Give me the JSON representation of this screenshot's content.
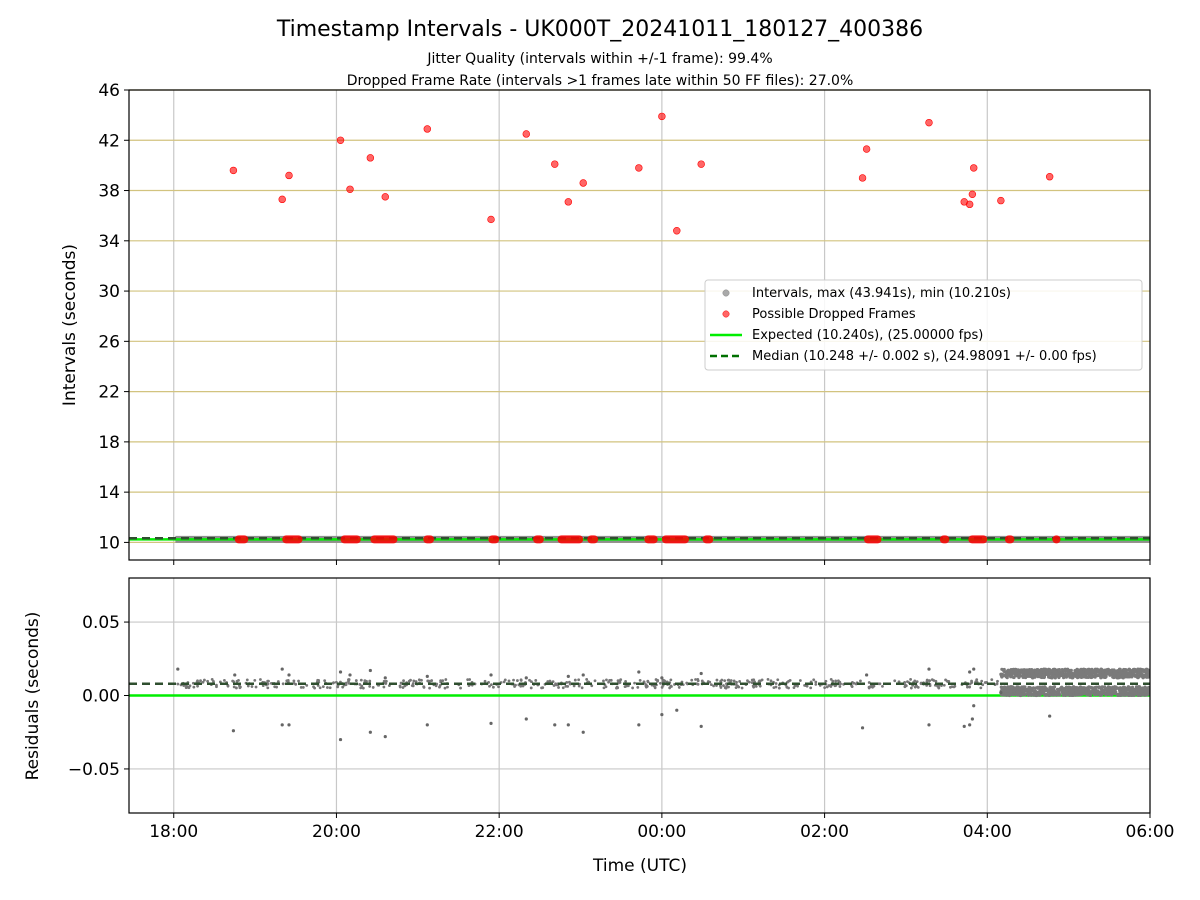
{
  "chart_data": {
    "type": "scatter",
    "title": "Timestamp Intervals - UK000T_20241011_180127_400386",
    "subtitle_lines": [
      "Jitter Quality (intervals within +/-1 frame): 99.4%",
      "Dropped Frame Rate (intervals >1 frames late within 50 FF files): 27.0%"
    ],
    "xlabel": "Time (UTC)",
    "x_ticks": [
      "18:00",
      "20:00",
      "22:00",
      "00:00",
      "02:00",
      "04:00",
      "06:00"
    ],
    "x_range_hours": [
      17.45,
      30.0
    ],
    "top": {
      "ylabel": "Intervals (seconds)",
      "ylim": [
        8.6,
        46
      ],
      "y_ticks": [
        10,
        14,
        18,
        22,
        26,
        30,
        34,
        38,
        42,
        46
      ],
      "grid": true,
      "legend_position": "center-right",
      "legend": [
        {
          "label": "Intervals, max (43.941s), min (10.210s)",
          "kind": "marker",
          "color": "#a9a9a9"
        },
        {
          "label": "Possible Dropped Frames",
          "kind": "marker",
          "color": "#ff0000"
        },
        {
          "label": "Expected (10.240s), (25.00000 fps)",
          "kind": "line",
          "color": "#00ee00",
          "dash": false
        },
        {
          "label": "Median (10.248 +/- 0.002 s), (24.98091 +/- 0.00 fps)",
          "kind": "line",
          "color": "#007000",
          "dash": true
        }
      ],
      "expected": 10.24,
      "median": 10.248,
      "dropped_frames": [
        {
          "time": "18:44",
          "interval": 39.6
        },
        {
          "time": "19:20",
          "interval": 37.3
        },
        {
          "time": "19:25",
          "interval": 39.2
        },
        {
          "time": "20:03",
          "interval": 42.0
        },
        {
          "time": "20:10",
          "interval": 38.1
        },
        {
          "time": "20:25",
          "interval": 40.6
        },
        {
          "time": "20:36",
          "interval": 37.5
        },
        {
          "time": "21:07",
          "interval": 42.9
        },
        {
          "time": "21:54",
          "interval": 35.7
        },
        {
          "time": "22:20",
          "interval": 42.5
        },
        {
          "time": "22:41",
          "interval": 40.1
        },
        {
          "time": "22:51",
          "interval": 37.1
        },
        {
          "time": "23:02",
          "interval": 38.6
        },
        {
          "time": "23:43",
          "interval": 39.8
        },
        {
          "time": "00:00",
          "interval": 43.9
        },
        {
          "time": "00:11",
          "interval": 34.8
        },
        {
          "time": "00:29",
          "interval": 40.1
        },
        {
          "time": "02:28",
          "interval": 39.0
        },
        {
          "time": "02:31",
          "interval": 41.3
        },
        {
          "time": "03:17",
          "interval": 43.4
        },
        {
          "time": "03:43",
          "interval": 37.1
        },
        {
          "time": "03:47",
          "interval": 36.9
        },
        {
          "time": "03:49",
          "interval": 37.7
        },
        {
          "time": "03:50",
          "interval": 39.8
        },
        {
          "time": "04:10",
          "interval": 37.2
        },
        {
          "time": "04:46",
          "interval": 39.1
        }
      ],
      "dropped_baseline_clusters": [
        [
          "18:45",
          "18:55"
        ],
        [
          "19:20",
          "19:35"
        ],
        [
          "20:03",
          "20:18"
        ],
        [
          "20:25",
          "20:45"
        ],
        [
          "21:04",
          "21:12"
        ],
        [
          "21:52",
          "22:00"
        ],
        [
          "22:25",
          "22:33"
        ],
        [
          "22:43",
          "23:02"
        ],
        [
          "23:05",
          "23:13"
        ],
        [
          "23:47",
          "23:57"
        ],
        [
          "00:00",
          "00:20"
        ],
        [
          "00:30",
          "00:38"
        ],
        [
          "02:29",
          "02:42"
        ],
        [
          "03:25",
          "03:32"
        ],
        [
          "03:46",
          "04:00"
        ],
        [
          "04:13",
          "04:20"
        ],
        [
          "04:48",
          "04:54"
        ]
      ]
    },
    "bottom": {
      "ylabel": "Residuals (seconds)",
      "ylim": [
        -0.08,
        0.08
      ],
      "y_ticks": [
        0.05,
        0.0,
        -0.05
      ],
      "y_tick_labels": [
        "0.05",
        "0.00",
        "−0.05"
      ],
      "grid": true,
      "expected_residual": 0.0,
      "median_residual": 0.008,
      "outlier_points": [
        {
          "time": "18:03",
          "residual": 0.018
        },
        {
          "time": "18:44",
          "residual": -0.024
        },
        {
          "time": "18:45",
          "residual": 0.014
        },
        {
          "time": "19:20",
          "residual": 0.018
        },
        {
          "time": "19:20",
          "residual": -0.02
        },
        {
          "time": "19:25",
          "residual": -0.02
        },
        {
          "time": "19:25",
          "residual": 0.014
        },
        {
          "time": "20:03",
          "residual": -0.03
        },
        {
          "time": "20:03",
          "residual": 0.016
        },
        {
          "time": "20:10",
          "residual": 0.014
        },
        {
          "time": "20:25",
          "residual": -0.025
        },
        {
          "time": "20:25",
          "residual": 0.017
        },
        {
          "time": "20:36",
          "residual": -0.028
        },
        {
          "time": "20:36",
          "residual": 0.012
        },
        {
          "time": "21:07",
          "residual": -0.02
        },
        {
          "time": "21:07",
          "residual": 0.013
        },
        {
          "time": "21:54",
          "residual": -0.019
        },
        {
          "time": "21:54",
          "residual": 0.014
        },
        {
          "time": "22:20",
          "residual": -0.016
        },
        {
          "time": "22:20",
          "residual": 0.012
        },
        {
          "time": "22:41",
          "residual": -0.02
        },
        {
          "time": "22:51",
          "residual": -0.02
        },
        {
          "time": "22:51",
          "residual": 0.013
        },
        {
          "time": "23:02",
          "residual": -0.025
        },
        {
          "time": "23:02",
          "residual": 0.014
        },
        {
          "time": "23:43",
          "residual": -0.02
        },
        {
          "time": "23:43",
          "residual": 0.016
        },
        {
          "time": "00:00",
          "residual": -0.013
        },
        {
          "time": "00:00",
          "residual": 0.012
        },
        {
          "time": "00:11",
          "residual": -0.01
        },
        {
          "time": "00:29",
          "residual": -0.021
        },
        {
          "time": "00:29",
          "residual": 0.015
        },
        {
          "time": "02:28",
          "residual": -0.022
        },
        {
          "time": "02:31",
          "residual": 0.014
        },
        {
          "time": "03:17",
          "residual": -0.02
        },
        {
          "time": "03:17",
          "residual": 0.018
        },
        {
          "time": "03:43",
          "residual": -0.021
        },
        {
          "time": "03:47",
          "residual": -0.02
        },
        {
          "time": "03:47",
          "residual": 0.016
        },
        {
          "time": "03:49",
          "residual": -0.016
        },
        {
          "time": "03:50",
          "residual": -0.007
        },
        {
          "time": "03:50",
          "residual": 0.018
        },
        {
          "time": "04:10",
          "residual": 0.002
        },
        {
          "time": "04:46",
          "residual": -0.014
        }
      ],
      "dense_band": {
        "start": "04:10",
        "end": "06:00",
        "upper": 0.015,
        "lower": 0.003
      }
    }
  }
}
